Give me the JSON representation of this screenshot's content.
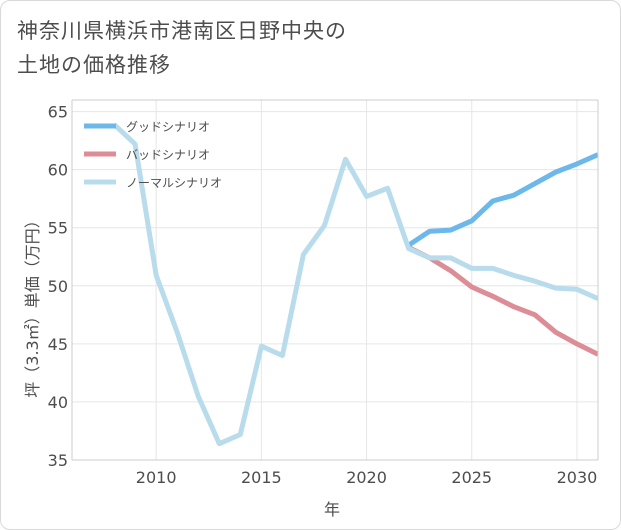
{
  "title_lines": [
    "神奈川県横浜市港南区日野中央の",
    "土地の価格推移"
  ],
  "chart_data": {
    "type": "line",
    "title": "神奈川県横浜市港南区日野中央の土地の価格推移",
    "xlabel": "年",
    "ylabel": "坪（3.3㎡）単価（万円）",
    "xlim": [
      2006,
      2031
    ],
    "ylim": [
      35,
      66
    ],
    "x_ticks": [
      2010,
      2015,
      2020,
      2025,
      2030
    ],
    "y_ticks": [
      35,
      40,
      45,
      50,
      55,
      60,
      65
    ],
    "grid": true,
    "legend_position": "top-left",
    "series": [
      {
        "name": "グッドシナリオ",
        "color": "#6cb8ea",
        "x": [
          2022,
          2023,
          2024,
          2025,
          2026,
          2027,
          2028,
          2029,
          2030,
          2031
        ],
        "y": [
          53.5,
          54.7,
          54.8,
          55.6,
          57.3,
          57.8,
          58.8,
          59.8,
          60.5,
          61.3
        ]
      },
      {
        "name": "バッドシナリオ",
        "color": "#dc8d96",
        "x": [
          2022,
          2023,
          2024,
          2025,
          2026,
          2027,
          2028,
          2029,
          2030,
          2031
        ],
        "y": [
          53.3,
          52.4,
          51.3,
          49.9,
          49.1,
          48.2,
          47.5,
          46.0,
          45.0,
          44.1
        ]
      },
      {
        "name": "ノーマルシナリオ",
        "color": "#b8dcec",
        "x": [
          2008,
          2009,
          2010,
          2011,
          2012,
          2013,
          2014,
          2015,
          2016,
          2017,
          2018,
          2019,
          2020,
          2021,
          2022,
          2023,
          2024,
          2025,
          2026,
          2027,
          2028,
          2029,
          2030,
          2031
        ],
        "y": [
          63.9,
          62.2,
          50.9,
          46.0,
          40.5,
          36.4,
          37.2,
          44.8,
          44.0,
          52.7,
          55.2,
          60.9,
          57.7,
          58.4,
          53.2,
          52.4,
          52.4,
          51.5,
          51.5,
          50.9,
          50.4,
          49.8,
          49.7,
          48.9
        ]
      }
    ]
  }
}
